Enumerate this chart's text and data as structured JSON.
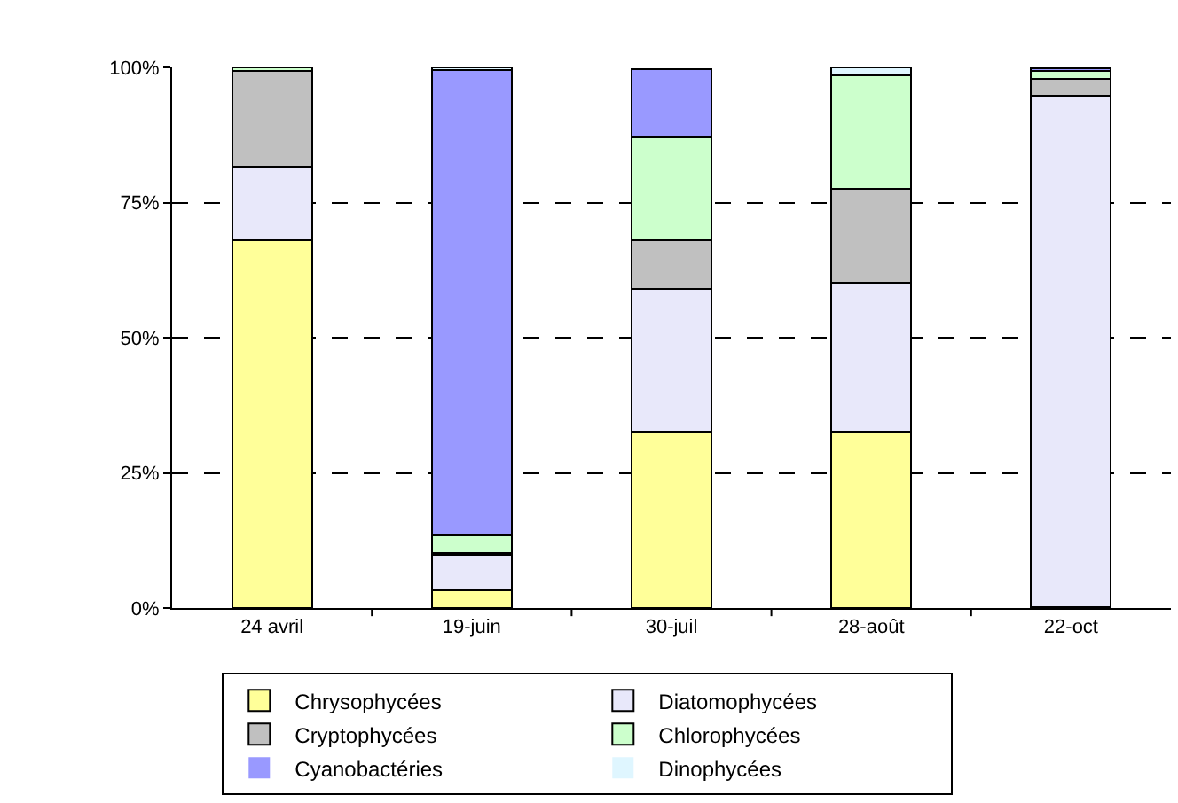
{
  "chart_data": {
    "type": "bar",
    "stacked": true,
    "categories": [
      "24 avril",
      "19-juin",
      "30-juil",
      "28-août",
      "22-oct"
    ],
    "series": [
      {
        "name": "Chrysophycées",
        "color": "#ffff99",
        "values": [
          68.1,
          3.2,
          32.7,
          32.7,
          0.2
        ]
      },
      {
        "name": "Diatomophycées",
        "color": "#e8e8fa",
        "values": [
          13.5,
          6.6,
          26.4,
          27.4,
          94.6
        ]
      },
      {
        "name": "Cryptophycées",
        "color": "#c0c0c0",
        "values": [
          17.7,
          0.4,
          9.0,
          17.5,
          3.0
        ]
      },
      {
        "name": "Chlorophycées",
        "color": "#ccffcc",
        "values": [
          0.7,
          3.2,
          19.0,
          21.0,
          1.5
        ]
      },
      {
        "name": "Cyanobactéries",
        "color": "#9999ff",
        "values": [
          0,
          86.1,
          12.6,
          0,
          0.5
        ]
      },
      {
        "name": "Dinophycées",
        "color": "#dff6ff",
        "values": [
          0,
          0.5,
          null,
          1.4,
          0.2
        ]
      }
    ],
    "ylim": [
      0,
      100
    ],
    "yticks": [
      {
        "value": 0,
        "label": "0%"
      },
      {
        "value": 25,
        "label": "25%"
      },
      {
        "value": 50,
        "label": "50%"
      },
      {
        "value": 75,
        "label": "75%"
      },
      {
        "value": 100,
        "label": "100%"
      }
    ],
    "grid": "y",
    "legend": "bottom"
  }
}
